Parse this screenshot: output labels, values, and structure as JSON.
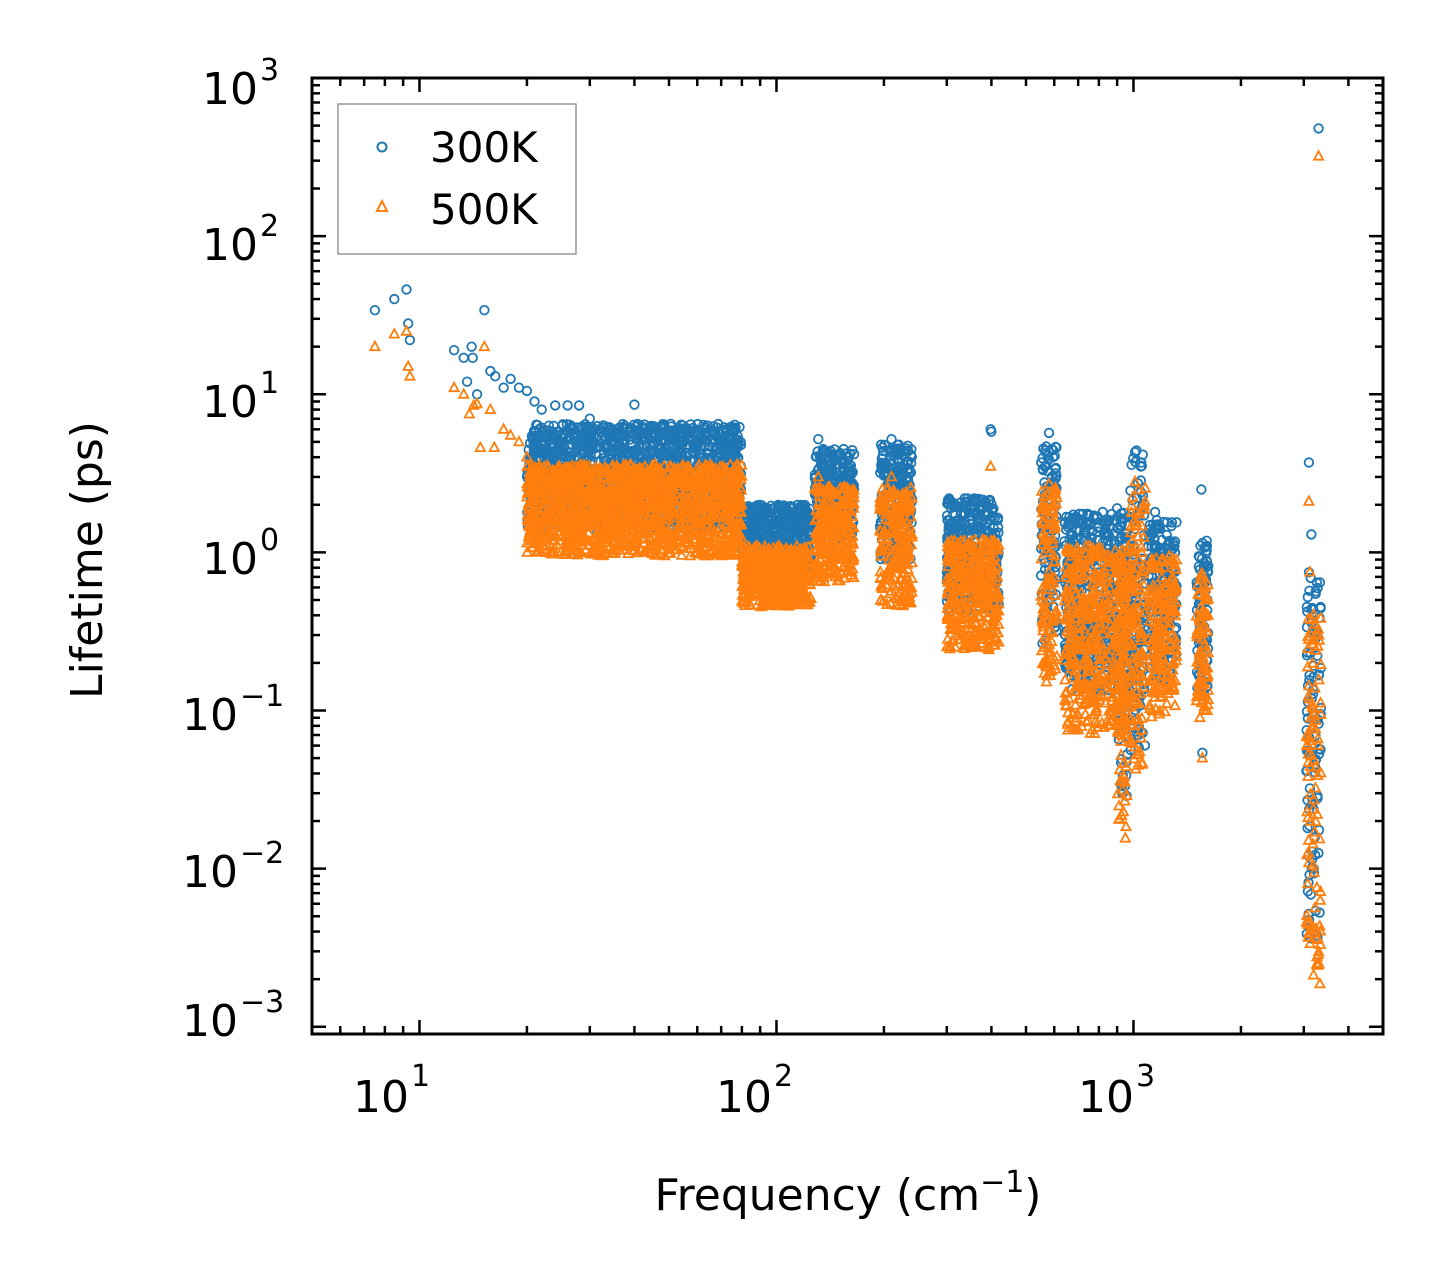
{
  "chart_data": {
    "type": "scatter",
    "title": "",
    "xlabel": "Frequency",
    "xlabel_unit": "cm",
    "xlabel_unit_exp": "−1",
    "ylabel": "Lifetime (ps)",
    "xscale": "log",
    "yscale": "log",
    "xlim": [
      5,
      5000
    ],
    "ylim": [
      0.0009,
      1000
    ],
    "x_tick_labels": [
      {
        "base": "10",
        "exp": "1",
        "value": 10
      },
      {
        "base": "10",
        "exp": "2",
        "value": 100
      },
      {
        "base": "10",
        "exp": "3",
        "value": 1000
      }
    ],
    "y_tick_labels": [
      {
        "base": "10",
        "exp": "−3",
        "value": 0.001
      },
      {
        "base": "10",
        "exp": "−2",
        "value": 0.01
      },
      {
        "base": "10",
        "exp": "−1",
        "value": 0.1
      },
      {
        "base": "10",
        "exp": "0",
        "value": 1
      },
      {
        "base": "10",
        "exp": "1",
        "value": 10
      },
      {
        "base": "10",
        "exp": "2",
        "value": 100
      },
      {
        "base": "10",
        "exp": "3",
        "value": 1000
      }
    ],
    "legend_position": "top-left",
    "series": [
      {
        "name": "300K",
        "color": "#1f77b4",
        "marker": "circle",
        "points": [
          [
            7.5,
            34
          ],
          [
            8.5,
            40
          ],
          [
            9.2,
            46
          ],
          [
            9.3,
            28
          ],
          [
            9.4,
            22
          ],
          [
            12.5,
            19
          ],
          [
            13.3,
            17
          ],
          [
            14,
            20
          ],
          [
            14.1,
            17
          ],
          [
            13.6,
            12
          ],
          [
            14.5,
            10
          ],
          [
            15.2,
            34
          ],
          [
            15.8,
            14
          ],
          [
            16.3,
            13
          ],
          [
            17.2,
            11
          ],
          [
            18,
            12.5
          ],
          [
            19,
            11
          ],
          [
            20,
            10.5
          ],
          [
            21,
            9
          ],
          [
            22,
            8
          ],
          [
            24,
            8.5
          ],
          [
            26,
            8.5
          ],
          [
            28,
            8.5
          ],
          [
            30,
            7
          ],
          [
            32,
            6
          ],
          [
            36,
            6
          ],
          [
            40,
            8.6
          ],
          [
            45,
            6.3
          ],
          [
            50,
            5.5
          ],
          [
            55,
            5
          ],
          [
            62,
            5.2
          ],
          [
            70,
            4.2
          ],
          [
            75,
            4
          ],
          [
            78,
            4
          ],
          [
            131,
            5.2
          ],
          [
            135,
            4.5
          ],
          [
            210,
            5.2
          ],
          [
            220,
            4.8
          ],
          [
            398,
            6
          ],
          [
            400,
            5.8
          ],
          [
            580,
            5.7
          ],
          [
            590,
            4.5
          ],
          [
            595,
            4
          ],
          [
            820,
            1.8
          ],
          [
            900,
            1.9
          ],
          [
            1010,
            4.3
          ],
          [
            1020,
            4.4
          ],
          [
            1150,
            1.8
          ],
          [
            1550,
            2.5
          ],
          [
            1560,
            0.054
          ],
          [
            3100,
            3.7
          ],
          [
            3150,
            1.3
          ],
          [
            3300,
            480
          ],
          [
            930,
            0.22
          ],
          [
            920,
            0.2
          ]
        ],
        "clusters": [
          {
            "x_min": 20,
            "x_max": 80,
            "y_min": 1.4,
            "y_max": 6.5
          },
          {
            "x_min": 80,
            "x_max": 125,
            "y_min": 0.75,
            "y_max": 2
          },
          {
            "x_min": 128,
            "x_max": 165,
            "y_min": 1.2,
            "y_max": 4.5
          },
          {
            "x_min": 195,
            "x_max": 240,
            "y_min": 0.9,
            "y_max": 4.8
          },
          {
            "x_min": 300,
            "x_max": 420,
            "y_min": 0.42,
            "y_max": 2.2
          },
          {
            "x_min": 550,
            "x_max": 610,
            "y_min": 0.26,
            "y_max": 4.8
          },
          {
            "x_min": 640,
            "x_max": 1000,
            "y_min": 0.13,
            "y_max": 1.8
          },
          {
            "x_min": 900,
            "x_max": 960,
            "y_min": 0.025,
            "y_max": 1.4
          },
          {
            "x_min": 980,
            "x_max": 1080,
            "y_min": 0.05,
            "y_max": 4.3
          },
          {
            "x_min": 1100,
            "x_max": 1320,
            "y_min": 0.15,
            "y_max": 1.6
          },
          {
            "x_min": 1500,
            "x_max": 1620,
            "y_min": 0.12,
            "y_max": 1.2
          },
          {
            "x_min": 3050,
            "x_max": 3350,
            "y_min": 0.0035,
            "y_max": 0.75
          }
        ]
      },
      {
        "name": "500K",
        "color": "#ff7f0e",
        "marker": "triangle",
        "points": [
          [
            7.5,
            20
          ],
          [
            8.5,
            24
          ],
          [
            9.2,
            25
          ],
          [
            9.3,
            15
          ],
          [
            9.4,
            13
          ],
          [
            12.5,
            11
          ],
          [
            13.3,
            10
          ],
          [
            13.8,
            7.5
          ],
          [
            14.2,
            8.5
          ],
          [
            14.5,
            8.7
          ],
          [
            14.8,
            4.6
          ],
          [
            15.2,
            20
          ],
          [
            15.8,
            8
          ],
          [
            16.2,
            4.6
          ],
          [
            17.2,
            6
          ],
          [
            18,
            5.5
          ],
          [
            19,
            5
          ],
          [
            20,
            4
          ],
          [
            21,
            3
          ],
          [
            25,
            2
          ],
          [
            30,
            1.7
          ],
          [
            36,
            1.6
          ],
          [
            60,
            1
          ],
          [
            70,
            0.95
          ],
          [
            131,
            3
          ],
          [
            210,
            3
          ],
          [
            398,
            3.5
          ],
          [
            580,
            2.7
          ],
          [
            1010,
            2.8
          ],
          [
            1560,
            0.05
          ],
          [
            3100,
            2.1
          ],
          [
            3120,
            0.75
          ],
          [
            3300,
            320
          ]
        ],
        "clusters": [
          {
            "x_min": 20,
            "x_max": 80,
            "y_min": 0.95,
            "y_max": 3.6
          },
          {
            "x_min": 80,
            "x_max": 125,
            "y_min": 0.45,
            "y_max": 1.1
          },
          {
            "x_min": 128,
            "x_max": 165,
            "y_min": 0.65,
            "y_max": 2.6
          },
          {
            "x_min": 195,
            "x_max": 240,
            "y_min": 0.45,
            "y_max": 2.6
          },
          {
            "x_min": 300,
            "x_max": 420,
            "y_min": 0.24,
            "y_max": 1.2
          },
          {
            "x_min": 550,
            "x_max": 610,
            "y_min": 0.15,
            "y_max": 2.6
          },
          {
            "x_min": 640,
            "x_max": 1000,
            "y_min": 0.07,
            "y_max": 1.1
          },
          {
            "x_min": 900,
            "x_max": 960,
            "y_min": 0.015,
            "y_max": 0.8
          },
          {
            "x_min": 980,
            "x_max": 1080,
            "y_min": 0.042,
            "y_max": 2.6
          },
          {
            "x_min": 1100,
            "x_max": 1320,
            "y_min": 0.09,
            "y_max": 0.95
          },
          {
            "x_min": 1500,
            "x_max": 1620,
            "y_min": 0.09,
            "y_max": 0.75
          },
          {
            "x_min": 3050,
            "x_max": 3350,
            "y_min": 0.0018,
            "y_max": 0.45
          }
        ]
      }
    ]
  }
}
